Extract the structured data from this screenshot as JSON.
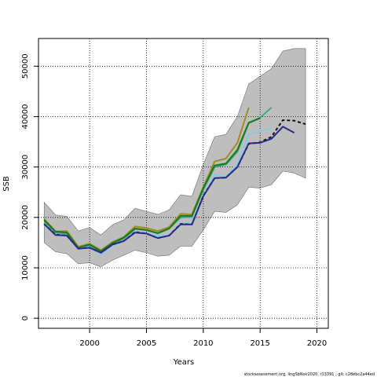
{
  "chart_data": {
    "type": "line",
    "title": "",
    "xlabel": "Years",
    "ylabel": "SSB",
    "xlim": [
      1995.5,
      2021
    ],
    "ylim": [
      -2000,
      55500
    ],
    "xticks": [
      2000,
      2005,
      2010,
      2015,
      2020
    ],
    "yticks": [
      0,
      10000,
      20000,
      30000,
      40000,
      50000
    ],
    "grid": true,
    "footer": "stockassessment.org, lingSbNov2020, r13391 , git: c28ebc2a44ed",
    "band": {
      "x": [
        1996,
        1997,
        1998,
        1999,
        2000,
        2001,
        2002,
        2003,
        2004,
        2005,
        2006,
        2007,
        2008,
        2009,
        2010,
        2011,
        2012,
        2013,
        2014,
        2015,
        2016,
        2017,
        2018,
        2019
      ],
      "upper": [
        23000,
        20500,
        20200,
        17300,
        18000,
        16500,
        18500,
        19500,
        21800,
        21200,
        20600,
        21500,
        24500,
        24200,
        30500,
        36000,
        36500,
        40000,
        46500,
        48000,
        49500,
        53000,
        53500,
        53500
      ],
      "lower": [
        15000,
        13200,
        12800,
        10800,
        11000,
        10200,
        11500,
        12500,
        13500,
        13000,
        12300,
        12500,
        14300,
        14300,
        17500,
        21200,
        21000,
        22500,
        26000,
        25800,
        26500,
        29200,
        28800,
        27800
      ]
    },
    "series": [
      {
        "values": [
          19700,
          17200,
          17300,
          14200,
          14800,
          13500,
          15100,
          16100,
          18200,
          17900,
          17300,
          18100,
          20700,
          20600,
          26000,
          31100,
          31700,
          34800,
          41800,
          null,
          null,
          null,
          null,
          null
        ],
        "color": "#a08a2a"
      },
      {
        "values": [
          19300,
          17000,
          16800,
          14000,
          14500,
          13200,
          14700,
          15800,
          17700,
          17500,
          16800,
          17800,
          20000,
          20100,
          25500,
          30000,
          30500,
          33000,
          38700,
          39800,
          41800,
          null,
          null,
          null
        ],
        "color": "#3aaa8a"
      },
      {
        "values": [
          19500,
          17200,
          17000,
          14000,
          14600,
          13300,
          14900,
          16000,
          17800,
          17500,
          16900,
          17800,
          20300,
          20300,
          25800,
          30300,
          30700,
          33400,
          38800,
          39700,
          null,
          null,
          null,
          null
        ],
        "color": "#1a7a1a"
      },
      {
        "values": [
          18800,
          16500,
          16300,
          13800,
          14100,
          12700,
          14400,
          15300,
          17200,
          16700,
          16300,
          16400,
          18800,
          18800,
          24200,
          28500,
          28100,
          30600,
          36500,
          37100,
          37700,
          null,
          null,
          null
        ],
        "color": "#8ac8e8"
      },
      {
        "values": [
          18700,
          16600,
          16400,
          13800,
          14000,
          13000,
          14600,
          15300,
          17100,
          16800,
          15900,
          16400,
          18700,
          18600,
          24300,
          27800,
          27900,
          30000,
          34600,
          34900,
          36000,
          39300,
          39200,
          38500
        ],
        "color": "#111111",
        "dashed": true
      },
      {
        "values": [
          18700,
          16500,
          16400,
          13800,
          14000,
          13000,
          14600,
          15300,
          17000,
          16800,
          15900,
          16400,
          18600,
          18600,
          24200,
          27800,
          27900,
          30000,
          34700,
          34800,
          35600,
          38000,
          36800,
          null
        ],
        "color": "#2a2a8a"
      }
    ]
  }
}
